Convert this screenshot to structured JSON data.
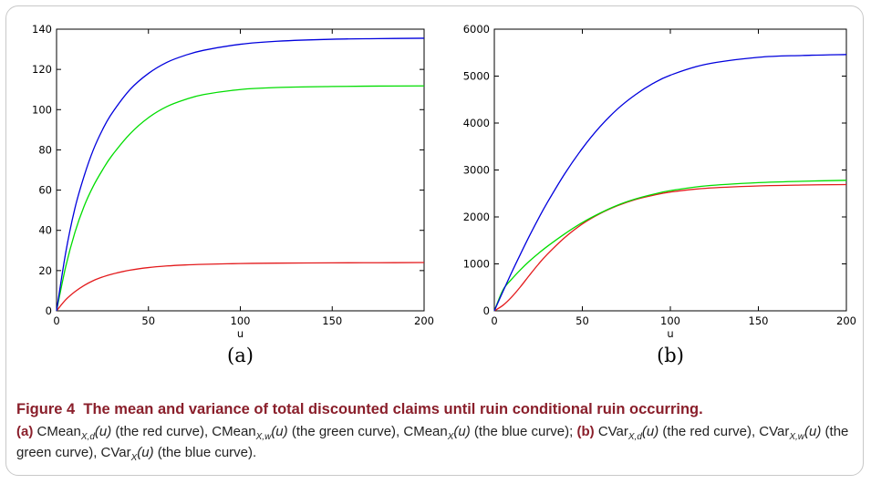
{
  "chart_data": [
    {
      "type": "line",
      "panel_label": "(a)",
      "xlabel": "u",
      "ylabel": "",
      "xlim": [
        0,
        200
      ],
      "ylim": [
        0,
        140
      ],
      "xticks": [
        0,
        50,
        100,
        150,
        200
      ],
      "yticks": [
        0,
        20,
        40,
        60,
        80,
        100,
        120,
        140
      ],
      "grid": false,
      "series": [
        {
          "color": "#e31a1c",
          "x": [
            0,
            5,
            10,
            15,
            20,
            25,
            30,
            40,
            50,
            60,
            70,
            80,
            100,
            120,
            150,
            175,
            200
          ],
          "y": [
            0,
            5.5,
            9.5,
            12.6,
            15.0,
            16.8,
            18.2,
            20.2,
            21.5,
            22.3,
            22.8,
            23.1,
            23.5,
            23.7,
            23.85,
            23.9,
            24.0
          ]
        },
        {
          "color": "#00dd00",
          "x": [
            0,
            5,
            10,
            15,
            20,
            25,
            30,
            40,
            50,
            60,
            70,
            80,
            100,
            120,
            150,
            175,
            200
          ],
          "y": [
            0,
            22,
            39,
            52,
            62,
            70,
            77,
            88,
            96,
            101.5,
            105,
            107.5,
            110,
            111,
            111.5,
            111.7,
            111.8
          ]
        },
        {
          "color": "#0000dd",
          "x": [
            0,
            5,
            10,
            15,
            20,
            25,
            30,
            40,
            50,
            60,
            70,
            80,
            100,
            120,
            150,
            175,
            200
          ],
          "y": [
            0,
            29,
            51,
            67,
            80,
            90,
            98,
            110,
            118,
            123.5,
            127,
            129.5,
            132.5,
            134,
            135,
            135.3,
            135.5
          ]
        }
      ]
    },
    {
      "type": "line",
      "panel_label": "(b)",
      "xlabel": "u",
      "ylabel": "",
      "xlim": [
        0,
        200
      ],
      "ylim": [
        0,
        6000
      ],
      "xticks": [
        0,
        50,
        100,
        150,
        200
      ],
      "yticks": [
        0,
        1000,
        2000,
        3000,
        4000,
        5000,
        6000
      ],
      "grid": false,
      "series": [
        {
          "color": "#e31a1c",
          "x": [
            0,
            5,
            10,
            15,
            20,
            25,
            30,
            40,
            50,
            60,
            70,
            80,
            90,
            100,
            120,
            150,
            175,
            200
          ],
          "y": [
            0,
            120,
            300,
            520,
            760,
            990,
            1200,
            1560,
            1850,
            2070,
            2240,
            2370,
            2460,
            2530,
            2610,
            2660,
            2680,
            2690
          ]
        },
        {
          "color": "#00dd00",
          "x": [
            0,
            5,
            10,
            15,
            20,
            25,
            30,
            40,
            50,
            60,
            70,
            80,
            90,
            100,
            120,
            150,
            175,
            200
          ],
          "y": [
            0,
            450,
            680,
            880,
            1060,
            1220,
            1370,
            1640,
            1880,
            2080,
            2250,
            2380,
            2480,
            2560,
            2660,
            2730,
            2760,
            2780
          ]
        },
        {
          "color": "#0000dd",
          "x": [
            0,
            5,
            10,
            15,
            20,
            25,
            30,
            40,
            50,
            60,
            70,
            80,
            90,
            100,
            120,
            150,
            175,
            200
          ],
          "y": [
            0,
            420,
            830,
            1220,
            1600,
            1960,
            2300,
            2920,
            3460,
            3920,
            4300,
            4600,
            4840,
            5020,
            5250,
            5400,
            5440,
            5460
          ]
        }
      ]
    }
  ],
  "caption": {
    "figure_label": "Figure 4",
    "title": "The mean and variance of total discounted claims until ruin conditional ruin occurring.",
    "a_label": "(a)",
    "b_label": "(b)",
    "cmean": "CMean",
    "cvar": "CVar",
    "sub_xd": "X,d",
    "sub_xw": "X,w",
    "sub_x": "X",
    "arg": "(u)",
    "red_note": " (the red curve), ",
    "green_note": " (the green curve), ",
    "blue_note_a": " (the blue curve); ",
    "blue_note_b": " (the blue curve)."
  }
}
